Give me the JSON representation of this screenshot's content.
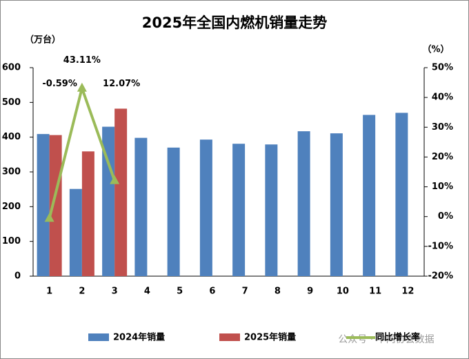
{
  "chart_data": {
    "type": "bar",
    "title": "2025年全国内燃机销量走势",
    "y_label": "（万台）",
    "y2_label": "（%）",
    "categories": [
      "1",
      "2",
      "3",
      "4",
      "5",
      "6",
      "7",
      "8",
      "9",
      "10",
      "11",
      "12"
    ],
    "series": [
      {
        "name": "2024年销量",
        "color": "#4f81bd",
        "values": [
          409,
          251,
          430,
          398,
          370,
          393,
          381,
          379,
          417,
          411,
          464,
          470
        ]
      },
      {
        "name": "2025年销量",
        "color": "#c0504d",
        "values": [
          406,
          359,
          482,
          null,
          null,
          null,
          null,
          null,
          null,
          null,
          null,
          null
        ]
      },
      {
        "name": "同比增长率",
        "type": "line",
        "axis": "y2",
        "color": "#9bbb59",
        "values": [
          -0.59,
          43.11,
          12.07,
          null,
          null,
          null,
          null,
          null,
          null,
          null,
          null,
          null
        ],
        "value_labels": [
          "-0.59%",
          "43.11%",
          "12.07%",
          null,
          null,
          null,
          null,
          null,
          null,
          null,
          null,
          null
        ]
      }
    ],
    "ylim": [
      0,
      600
    ],
    "yticks": [
      0,
      100,
      200,
      300,
      400,
      500,
      600
    ],
    "y2lim": [
      -20,
      50
    ],
    "y2ticks": [
      {
        "value": -20,
        "label": "-20%"
      },
      {
        "value": -10,
        "label": "-10%"
      },
      {
        "value": 0,
        "label": "0%"
      },
      {
        "value": 10,
        "label": "10%"
      },
      {
        "value": 20,
        "label": "20%"
      },
      {
        "value": 30,
        "label": "30%"
      },
      {
        "value": 40,
        "label": "40%"
      },
      {
        "value": 50,
        "label": "50%"
      }
    ],
    "legend": "bottom",
    "watermark": "公众号 · 中内协会数据"
  }
}
